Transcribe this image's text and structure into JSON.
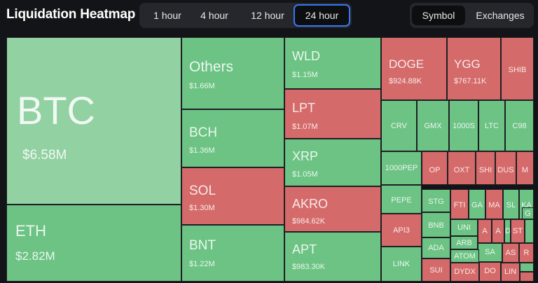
{
  "header": {
    "title": "Liquidation Heatmap",
    "time_tabs": [
      "1 hour",
      "4 hour",
      "12 hour",
      "24 hour"
    ],
    "active_time_tab": "24 hour",
    "view_tabs": [
      "Symbol",
      "Exchanges"
    ],
    "active_view_tab": "Symbol"
  },
  "colors": {
    "long_liquidation_green": "#6cc384",
    "largest_tile_green": "#92d1a1",
    "short_liquidation_red": "#d56a6a",
    "active_tab_border": "#3b76ee",
    "background": "#131417"
  },
  "tiles": [
    {
      "symbol": "BTC",
      "value": "$6.58M",
      "color": "gl"
    },
    {
      "symbol": "ETH",
      "value": "$2.82M",
      "color": "g"
    },
    {
      "symbol": "Others",
      "value": "$1.66M",
      "color": "g"
    },
    {
      "symbol": "BCH",
      "value": "$1.36M",
      "color": "g"
    },
    {
      "symbol": "SOL",
      "value": "$1.30M",
      "color": "r"
    },
    {
      "symbol": "BNT",
      "value": "$1.22M",
      "color": "g"
    },
    {
      "symbol": "WLD",
      "value": "$1.15M",
      "color": "g"
    },
    {
      "symbol": "LPT",
      "value": "$1.07M",
      "color": "r"
    },
    {
      "symbol": "XRP",
      "value": "$1.05M",
      "color": "g"
    },
    {
      "symbol": "AKRO",
      "value": "$984.62K",
      "color": "r"
    },
    {
      "symbol": "APT",
      "value": "$983.30K",
      "color": "g"
    },
    {
      "symbol": "DOGE",
      "value": "$924.88K",
      "color": "r"
    },
    {
      "symbol": "YGG",
      "value": "$767.11K",
      "color": "r"
    },
    {
      "symbol": "SHIB",
      "value": "",
      "color": "r"
    },
    {
      "symbol": "CRV",
      "value": "",
      "color": "g"
    },
    {
      "symbol": "GMX",
      "value": "",
      "color": "g"
    },
    {
      "symbol": "1000S",
      "value": "",
      "color": "g"
    },
    {
      "symbol": "LTC",
      "value": "",
      "color": "g"
    },
    {
      "symbol": "C98",
      "value": "",
      "color": "g"
    },
    {
      "symbol": "1000PEP",
      "value": "",
      "color": "g"
    },
    {
      "symbol": "OP",
      "value": "",
      "color": "r"
    },
    {
      "symbol": "OXT",
      "value": "",
      "color": "r"
    },
    {
      "symbol": "SHI",
      "value": "",
      "color": "r"
    },
    {
      "symbol": "DUS",
      "value": "",
      "color": "r"
    },
    {
      "symbol": "M",
      "value": "",
      "color": "r"
    },
    {
      "symbol": "PEPE",
      "value": "",
      "color": "g"
    },
    {
      "symbol": "STG",
      "value": "",
      "color": "g"
    },
    {
      "symbol": "FTI",
      "value": "",
      "color": "r"
    },
    {
      "symbol": "GA",
      "value": "",
      "color": "g"
    },
    {
      "symbol": "MA",
      "value": "",
      "color": "r"
    },
    {
      "symbol": "SL",
      "value": "",
      "color": "g"
    },
    {
      "symbol": "KA",
      "value": "",
      "color": "g"
    },
    {
      "symbol": "G",
      "value": "",
      "color": "g"
    },
    {
      "symbol": "API3",
      "value": "",
      "color": "r"
    },
    {
      "symbol": "BNB",
      "value": "",
      "color": "g"
    },
    {
      "symbol": "UNI",
      "value": "",
      "color": "g"
    },
    {
      "symbol": "A",
      "value": "",
      "color": "r"
    },
    {
      "symbol": "A",
      "value": "",
      "color": "r"
    },
    {
      "symbol": "D",
      "value": "",
      "color": "g"
    },
    {
      "symbol": "ST",
      "value": "",
      "color": "r"
    },
    {
      "symbol": "",
      "value": "",
      "color": "g"
    },
    {
      "symbol": "ADA",
      "value": "",
      "color": "g"
    },
    {
      "symbol": "ARB",
      "value": "",
      "color": "g"
    },
    {
      "symbol": "SA",
      "value": "",
      "color": "g"
    },
    {
      "symbol": "AS",
      "value": "",
      "color": "r"
    },
    {
      "symbol": "R",
      "value": "",
      "color": "r"
    },
    {
      "symbol": "LINK",
      "value": "",
      "color": "g"
    },
    {
      "symbol": "ATOM",
      "value": "",
      "color": "g"
    },
    {
      "symbol": "SUI",
      "value": "",
      "color": "r"
    },
    {
      "symbol": "DYDX",
      "value": "",
      "color": "r"
    },
    {
      "symbol": "DO",
      "value": "",
      "color": "r"
    },
    {
      "symbol": "LIN",
      "value": "",
      "color": "r"
    },
    {
      "symbol": "",
      "value": "",
      "color": "g"
    },
    {
      "symbol": "",
      "value": "",
      "color": "r"
    }
  ]
}
